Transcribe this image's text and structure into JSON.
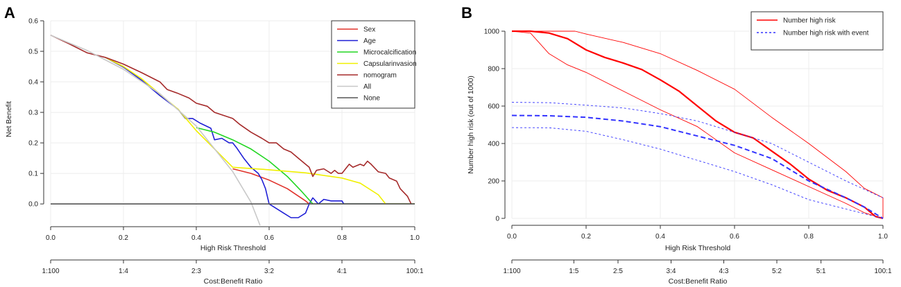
{
  "chart_data": [
    {
      "panel": "A",
      "type": "line",
      "title": "",
      "xlabel": "High Risk Threshold",
      "ylabel": "Net Benefit",
      "xlim": [
        0,
        1
      ],
      "ylim": [
        -0.07,
        0.6
      ],
      "xticks": [
        "0.0",
        "0.2",
        "0.4",
        "0.6",
        "0.8",
        "1.0"
      ],
      "yticks": [
        "0.0",
        "0.1",
        "0.2",
        "0.3",
        "0.4",
        "0.5",
        "0.6"
      ],
      "cost_benefit_label": "Cost:Benefit Ratio",
      "cost_benefit_ticks": [
        {
          "x": 0.0,
          "label": "1:100"
        },
        {
          "x": 0.2,
          "label": "1:4"
        },
        {
          "x": 0.4,
          "label": "2:3"
        },
        {
          "x": 0.6,
          "label": "3:2"
        },
        {
          "x": 0.8,
          "label": "4:1"
        },
        {
          "x": 1.0,
          "label": "100:1"
        }
      ],
      "legend_position": "top-right",
      "series": [
        {
          "name": "Sex",
          "color": "#e0302a",
          "points": [
            [
              0.5,
              0.115
            ],
            [
              0.55,
              0.1
            ],
            [
              0.6,
              0.078
            ],
            [
              0.65,
              0.05
            ],
            [
              0.7,
              0.01
            ],
            [
              0.71,
              0.0
            ],
            [
              1.0,
              0.0
            ]
          ]
        },
        {
          "name": "Age",
          "color": "#1f1fd6",
          "points": [
            [
              0.15,
              0.48
            ],
            [
              0.2,
              0.448
            ],
            [
              0.25,
              0.405
            ],
            [
              0.3,
              0.355
            ],
            [
              0.35,
              0.31
            ],
            [
              0.37,
              0.28
            ],
            [
              0.39,
              0.28
            ],
            [
              0.41,
              0.265
            ],
            [
              0.44,
              0.248
            ],
            [
              0.45,
              0.21
            ],
            [
              0.47,
              0.215
            ],
            [
              0.49,
              0.2
            ],
            [
              0.5,
              0.2
            ],
            [
              0.51,
              0.185
            ],
            [
              0.53,
              0.15
            ],
            [
              0.55,
              0.12
            ],
            [
              0.57,
              0.1
            ],
            [
              0.58,
              0.08
            ],
            [
              0.59,
              0.05
            ],
            [
              0.6,
              0.0
            ],
            [
              0.62,
              -0.015
            ],
            [
              0.64,
              -0.03
            ],
            [
              0.66,
              -0.045
            ],
            [
              0.68,
              -0.045
            ],
            [
              0.7,
              -0.03
            ],
            [
              0.71,
              0.0
            ],
            [
              0.72,
              0.02
            ],
            [
              0.735,
              0.0
            ],
            [
              0.75,
              0.015
            ],
            [
              0.77,
              0.01
            ],
            [
              0.8,
              0.01
            ],
            [
              0.805,
              0.0
            ],
            [
              1.0,
              0.0
            ]
          ]
        },
        {
          "name": "Microcalcification",
          "color": "#22d622",
          "points": [
            [
              0.4,
              0.25
            ],
            [
              0.45,
              0.235
            ],
            [
              0.5,
              0.21
            ],
            [
              0.55,
              0.18
            ],
            [
              0.6,
              0.14
            ],
            [
              0.65,
              0.09
            ],
            [
              0.69,
              0.04
            ],
            [
              0.72,
              0.0
            ],
            [
              1.0,
              0.0
            ]
          ]
        },
        {
          "name": "Capsularinvasion",
          "color": "#f0f000",
          "points": [
            [
              0.15,
              0.48
            ],
            [
              0.2,
              0.45
            ],
            [
              0.25,
              0.41
            ],
            [
              0.3,
              0.36
            ],
            [
              0.35,
              0.31
            ],
            [
              0.4,
              0.24
            ],
            [
              0.45,
              0.18
            ],
            [
              0.5,
              0.12
            ],
            [
              0.6,
              0.112
            ],
            [
              0.7,
              0.102
            ],
            [
              0.8,
              0.085
            ],
            [
              0.85,
              0.068
            ],
            [
              0.9,
              0.03
            ],
            [
              0.92,
              0.0
            ],
            [
              1.0,
              0.0
            ]
          ]
        },
        {
          "name": "nomogram",
          "color": "#a52a2a",
          "points": [
            [
              0.0,
              0.553
            ],
            [
              0.05,
              0.525
            ],
            [
              0.1,
              0.495
            ],
            [
              0.15,
              0.48
            ],
            [
              0.2,
              0.458
            ],
            [
              0.25,
              0.43
            ],
            [
              0.3,
              0.4
            ],
            [
              0.32,
              0.375
            ],
            [
              0.35,
              0.362
            ],
            [
              0.38,
              0.347
            ],
            [
              0.4,
              0.33
            ],
            [
              0.43,
              0.32
            ],
            [
              0.45,
              0.3
            ],
            [
              0.5,
              0.28
            ],
            [
              0.52,
              0.26
            ],
            [
              0.55,
              0.235
            ],
            [
              0.58,
              0.215
            ],
            [
              0.6,
              0.2
            ],
            [
              0.62,
              0.2
            ],
            [
              0.64,
              0.18
            ],
            [
              0.66,
              0.17
            ],
            [
              0.68,
              0.15
            ],
            [
              0.7,
              0.13
            ],
            [
              0.71,
              0.12
            ],
            [
              0.72,
              0.09
            ],
            [
              0.73,
              0.11
            ],
            [
              0.75,
              0.115
            ],
            [
              0.77,
              0.1
            ],
            [
              0.78,
              0.11
            ],
            [
              0.79,
              0.1
            ],
            [
              0.8,
              0.1
            ],
            [
              0.82,
              0.13
            ],
            [
              0.83,
              0.12
            ],
            [
              0.85,
              0.13
            ],
            [
              0.86,
              0.125
            ],
            [
              0.87,
              0.14
            ],
            [
              0.88,
              0.13
            ],
            [
              0.9,
              0.105
            ],
            [
              0.92,
              0.1
            ],
            [
              0.93,
              0.085
            ],
            [
              0.95,
              0.075
            ],
            [
              0.96,
              0.05
            ],
            [
              0.98,
              0.025
            ],
            [
              0.99,
              0.0
            ]
          ]
        },
        {
          "name": "All",
          "color": "#c8c8c8",
          "points": [
            [
              0.0,
              0.553
            ],
            [
              0.1,
              0.503
            ],
            [
              0.2,
              0.441
            ],
            [
              0.3,
              0.361
            ],
            [
              0.4,
              0.255
            ],
            [
              0.5,
              0.106
            ],
            [
              0.55,
              0.006
            ],
            [
              0.575,
              -0.07
            ]
          ]
        },
        {
          "name": "None",
          "color": "#555555",
          "points": [
            [
              0.0,
              0.0
            ],
            [
              1.0,
              0.0
            ]
          ]
        }
      ]
    },
    {
      "panel": "B",
      "type": "line",
      "title": "",
      "xlabel": "High Risk Threshold",
      "ylabel": "Number high risk (out of 1000)",
      "xlim": [
        0,
        1
      ],
      "ylim": [
        0,
        1000
      ],
      "xticks": [
        "0.0",
        "0.2",
        "0.4",
        "0.6",
        "0.8",
        "1.0"
      ],
      "yticks": [
        "0",
        "200",
        "400",
        "600",
        "800",
        "1000"
      ],
      "cost_benefit_label": "Cost:Benefit Ratio",
      "cost_benefit_ticks": [
        {
          "x": 0.0,
          "label": "1:100"
        },
        {
          "x": 0.167,
          "label": "1:5"
        },
        {
          "x": 0.286,
          "label": "2:5"
        },
        {
          "x": 0.429,
          "label": "3:4"
        },
        {
          "x": 0.571,
          "label": "4:3"
        },
        {
          "x": 0.714,
          "label": "5:2"
        },
        {
          "x": 0.833,
          "label": "5:1"
        },
        {
          "x": 1.0,
          "label": "100:1"
        }
      ],
      "legend_position": "top-right",
      "legend": [
        {
          "name": "Number high risk",
          "color": "#ff0000",
          "dash": "solid"
        },
        {
          "name": "Number high risk with event",
          "color": "#3333ff",
          "dash": "dashed"
        }
      ],
      "series": [
        {
          "name": "Number high risk",
          "color": "#ff0000",
          "width": 2.2,
          "dash": "",
          "points": [
            [
              0.0,
              1000
            ],
            [
              0.05,
              1000
            ],
            [
              0.1,
              990
            ],
            [
              0.15,
              960
            ],
            [
              0.2,
              900
            ],
            [
              0.25,
              860
            ],
            [
              0.3,
              830
            ],
            [
              0.35,
              795
            ],
            [
              0.4,
              740
            ],
            [
              0.45,
              680
            ],
            [
              0.5,
              600
            ],
            [
              0.55,
              520
            ],
            [
              0.6,
              460
            ],
            [
              0.65,
              430
            ],
            [
              0.7,
              360
            ],
            [
              0.75,
              290
            ],
            [
              0.8,
              210
            ],
            [
              0.85,
              150
            ],
            [
              0.9,
              110
            ],
            [
              0.95,
              60
            ],
            [
              0.98,
              10
            ],
            [
              1.0,
              0
            ]
          ]
        },
        {
          "name": "Number high risk upper",
          "color": "#ff0000",
          "width": 0.9,
          "dash": "",
          "points": [
            [
              0.0,
              1000
            ],
            [
              0.1,
              1000
            ],
            [
              0.17,
              1000
            ],
            [
              0.2,
              985
            ],
            [
              0.3,
              940
            ],
            [
              0.4,
              880
            ],
            [
              0.5,
              790
            ],
            [
              0.6,
              690
            ],
            [
              0.7,
              540
            ],
            [
              0.8,
              400
            ],
            [
              0.9,
              250
            ],
            [
              0.95,
              160
            ],
            [
              1.0,
              110
            ],
            [
              1.0,
              0
            ]
          ]
        },
        {
          "name": "Number high risk lower",
          "color": "#ff0000",
          "width": 0.9,
          "dash": "",
          "points": [
            [
              0.0,
              1000
            ],
            [
              0.05,
              990
            ],
            [
              0.1,
              880
            ],
            [
              0.15,
              820
            ],
            [
              0.2,
              780
            ],
            [
              0.3,
              680
            ],
            [
              0.4,
              580
            ],
            [
              0.5,
              490
            ],
            [
              0.6,
              350
            ],
            [
              0.7,
              260
            ],
            [
              0.8,
              170
            ],
            [
              0.9,
              80
            ],
            [
              0.95,
              30
            ],
            [
              1.0,
              0
            ]
          ]
        },
        {
          "name": "Number high risk with event",
          "color": "#3333ff",
          "width": 2.0,
          "dash": "7,4",
          "points": [
            [
              0.0,
              550
            ],
            [
              0.1,
              548
            ],
            [
              0.2,
              540
            ],
            [
              0.3,
              520
            ],
            [
              0.4,
              490
            ],
            [
              0.5,
              440
            ],
            [
              0.6,
              390
            ],
            [
              0.7,
              320
            ],
            [
              0.8,
              200
            ],
            [
              0.9,
              110
            ],
            [
              0.95,
              60
            ],
            [
              1.0,
              0
            ]
          ]
        },
        {
          "name": "Number high risk with event upper",
          "color": "#3333ff",
          "width": 0.9,
          "dash": "3,3",
          "points": [
            [
              0.0,
              620
            ],
            [
              0.1,
              618
            ],
            [
              0.2,
              605
            ],
            [
              0.3,
              590
            ],
            [
              0.4,
              560
            ],
            [
              0.5,
              520
            ],
            [
              0.6,
              460
            ],
            [
              0.7,
              400
            ],
            [
              0.8,
              300
            ],
            [
              0.9,
              200
            ],
            [
              1.0,
              110
            ]
          ]
        },
        {
          "name": "Number high risk with event lower",
          "color": "#3333ff",
          "width": 0.9,
          "dash": "3,3",
          "points": [
            [
              0.0,
              485
            ],
            [
              0.1,
              484
            ],
            [
              0.2,
              465
            ],
            [
              0.3,
              420
            ],
            [
              0.4,
              370
            ],
            [
              0.5,
              310
            ],
            [
              0.6,
              250
            ],
            [
              0.7,
              180
            ],
            [
              0.8,
              100
            ],
            [
              0.9,
              50
            ],
            [
              1.0,
              0
            ]
          ]
        }
      ]
    }
  ]
}
